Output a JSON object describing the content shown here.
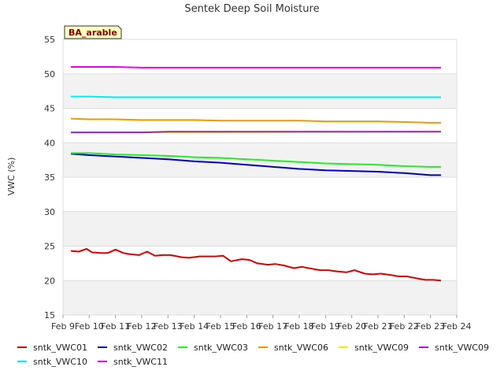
{
  "chart_data": {
    "type": "line",
    "title": "Sentek Deep Soil Moisture",
    "tag": "BA_arable",
    "xlabel": "",
    "ylabel": "VWC (%)",
    "x_ticks": [
      "Feb 9",
      "Feb 10",
      "Feb 11",
      "Feb 12",
      "Feb 13",
      "Feb 14",
      "Feb 15",
      "Feb 16",
      "Feb 17",
      "Feb 18",
      "Feb 19",
      "Feb 20",
      "Feb 21",
      "Feb 22",
      "Feb 23",
      "Feb 24"
    ],
    "xlim": [
      9,
      24
    ],
    "ylim": [
      15,
      55
    ],
    "y_ticks": [
      15,
      20,
      25,
      30,
      35,
      40,
      45,
      50,
      55
    ],
    "grid": true,
    "legend_position": "bottom",
    "series": [
      {
        "name": "sntk_VWC01",
        "color": "#dd0000",
        "x": [
          9.3,
          9.6,
          9.9,
          10.1,
          10.4,
          10.7,
          11.0,
          11.3,
          11.6,
          11.9,
          12.2,
          12.5,
          12.8,
          13.1,
          13.5,
          13.8,
          14.2,
          14.5,
          14.8,
          15.1,
          15.4,
          15.8,
          16.1,
          16.4,
          16.8,
          17.1,
          17.4,
          17.8,
          18.1,
          18.5,
          18.8,
          19.1,
          19.5,
          19.8,
          20.1,
          20.5,
          20.8,
          21.1,
          21.5,
          21.8,
          22.1,
          22.5,
          22.8,
          23.1,
          23.4
        ],
        "y": [
          24.3,
          24.2,
          24.6,
          24.1,
          24.0,
          24.0,
          24.5,
          24.0,
          23.8,
          23.7,
          24.2,
          23.6,
          23.7,
          23.7,
          23.4,
          23.3,
          23.5,
          23.5,
          23.5,
          23.6,
          22.8,
          23.1,
          23.0,
          22.5,
          22.3,
          22.4,
          22.2,
          21.8,
          22.0,
          21.7,
          21.5,
          21.5,
          21.3,
          21.2,
          21.5,
          21.0,
          20.9,
          21.0,
          20.8,
          20.6,
          20.6,
          20.3,
          20.1,
          20.1,
          20.0
        ]
      },
      {
        "name": "sntk_VWC02",
        "color": "#0000cc",
        "x": [
          9.3,
          10.0,
          11.0,
          12.0,
          13.0,
          14.0,
          15.0,
          16.0,
          17.0,
          18.0,
          19.0,
          20.0,
          21.0,
          22.0,
          23.0,
          23.4
        ],
        "y": [
          38.4,
          38.2,
          38.0,
          37.8,
          37.6,
          37.3,
          37.1,
          36.8,
          36.5,
          36.2,
          36.0,
          35.9,
          35.8,
          35.6,
          35.3,
          35.3
        ]
      },
      {
        "name": "sntk_VWC03",
        "color": "#22ee22",
        "x": [
          9.3,
          10.0,
          11.0,
          12.0,
          13.0,
          14.0,
          15.0,
          16.0,
          17.0,
          18.0,
          19.0,
          20.0,
          21.0,
          22.0,
          23.0,
          23.4
        ],
        "y": [
          38.5,
          38.5,
          38.3,
          38.2,
          38.1,
          37.9,
          37.8,
          37.6,
          37.4,
          37.2,
          37.0,
          36.9,
          36.8,
          36.6,
          36.5,
          36.5
        ]
      },
      {
        "name": "sntk_VWC06",
        "color": "#ee9900",
        "x": [
          9.3,
          10.0,
          11.0,
          12.0,
          13.0,
          14.0,
          15.0,
          16.0,
          17.0,
          18.0,
          19.0,
          20.0,
          21.0,
          22.0,
          23.0,
          23.4
        ],
        "y": [
          43.5,
          43.4,
          43.4,
          43.3,
          43.3,
          43.3,
          43.2,
          43.2,
          43.2,
          43.2,
          43.1,
          43.1,
          43.1,
          43.0,
          42.9,
          42.9
        ]
      },
      {
        "name": "sntk_VWC09",
        "color": "#eeee00",
        "x": [
          9.3,
          23.4
        ],
        "y": [
          41.5,
          41.6
        ]
      },
      {
        "name": "sntk_VWC09",
        "color": "#9922cc",
        "x": [
          9.3,
          10.0,
          11.0,
          12.0,
          13.0,
          14.0,
          15.0,
          16.0,
          17.0,
          18.0,
          19.0,
          20.0,
          21.0,
          22.0,
          23.0,
          23.4
        ],
        "y": [
          41.5,
          41.5,
          41.5,
          41.5,
          41.6,
          41.6,
          41.6,
          41.6,
          41.6,
          41.6,
          41.6,
          41.6,
          41.6,
          41.6,
          41.6,
          41.6
        ]
      },
      {
        "name": "sntk_VWC10",
        "color": "#00eeee",
        "x": [
          9.3,
          10.0,
          11.0,
          12.0,
          13.0,
          14.0,
          15.0,
          16.0,
          17.0,
          18.0,
          19.0,
          20.0,
          21.0,
          22.0,
          23.0,
          23.4
        ],
        "y": [
          46.7,
          46.7,
          46.6,
          46.6,
          46.6,
          46.6,
          46.6,
          46.6,
          46.6,
          46.6,
          46.6,
          46.6,
          46.6,
          46.6,
          46.6,
          46.6
        ]
      },
      {
        "name": "sntk_VWC11",
        "color": "#ee00ee",
        "x": [
          9.3,
          10.0,
          11.0,
          12.0,
          13.0,
          14.0,
          15.0,
          16.0,
          17.0,
          18.0,
          19.0,
          20.0,
          21.0,
          22.0,
          23.0,
          23.4
        ],
        "y": [
          51.0,
          51.0,
          51.0,
          50.9,
          50.9,
          50.9,
          50.9,
          50.9,
          50.9,
          50.9,
          50.9,
          50.9,
          50.9,
          50.9,
          50.9,
          50.9
        ]
      }
    ]
  }
}
